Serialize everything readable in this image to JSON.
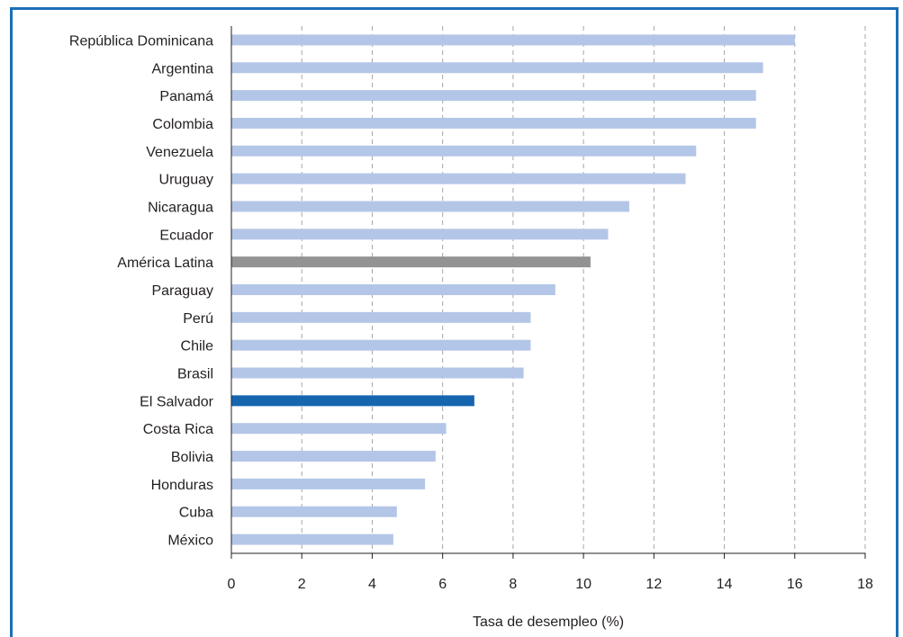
{
  "chart_data": {
    "type": "bar",
    "orientation": "horizontal",
    "categories": [
      "República Dominicana",
      "Argentina",
      "Panamá",
      "Colombia",
      "Venezuela",
      "Uruguay",
      "Nicaragua",
      "Ecuador",
      "América Latina",
      "Paraguay",
      "Perú",
      "Chile",
      "Brasil",
      "El Salvador",
      "Costa Rica",
      "Bolivia",
      "Honduras",
      "Cuba",
      "México"
    ],
    "values": [
      16.0,
      15.1,
      14.9,
      14.9,
      13.2,
      12.9,
      11.3,
      10.7,
      10.2,
      9.2,
      8.5,
      8.5,
      8.3,
      6.9,
      6.1,
      5.8,
      5.5,
      4.7,
      4.6
    ],
    "highlight": {
      "América Latina": "#939393",
      "El Salvador": "#1666af"
    },
    "bar_color": "#b4c6e7",
    "xlim": [
      0,
      18
    ],
    "xticks": [
      0,
      2,
      4,
      6,
      8,
      10,
      12,
      14,
      16,
      18
    ],
    "xlabel": "Tasa de desempleo (%)",
    "title": "",
    "grid": "vertical dashed",
    "frame_color": "#1b6fb5"
  }
}
